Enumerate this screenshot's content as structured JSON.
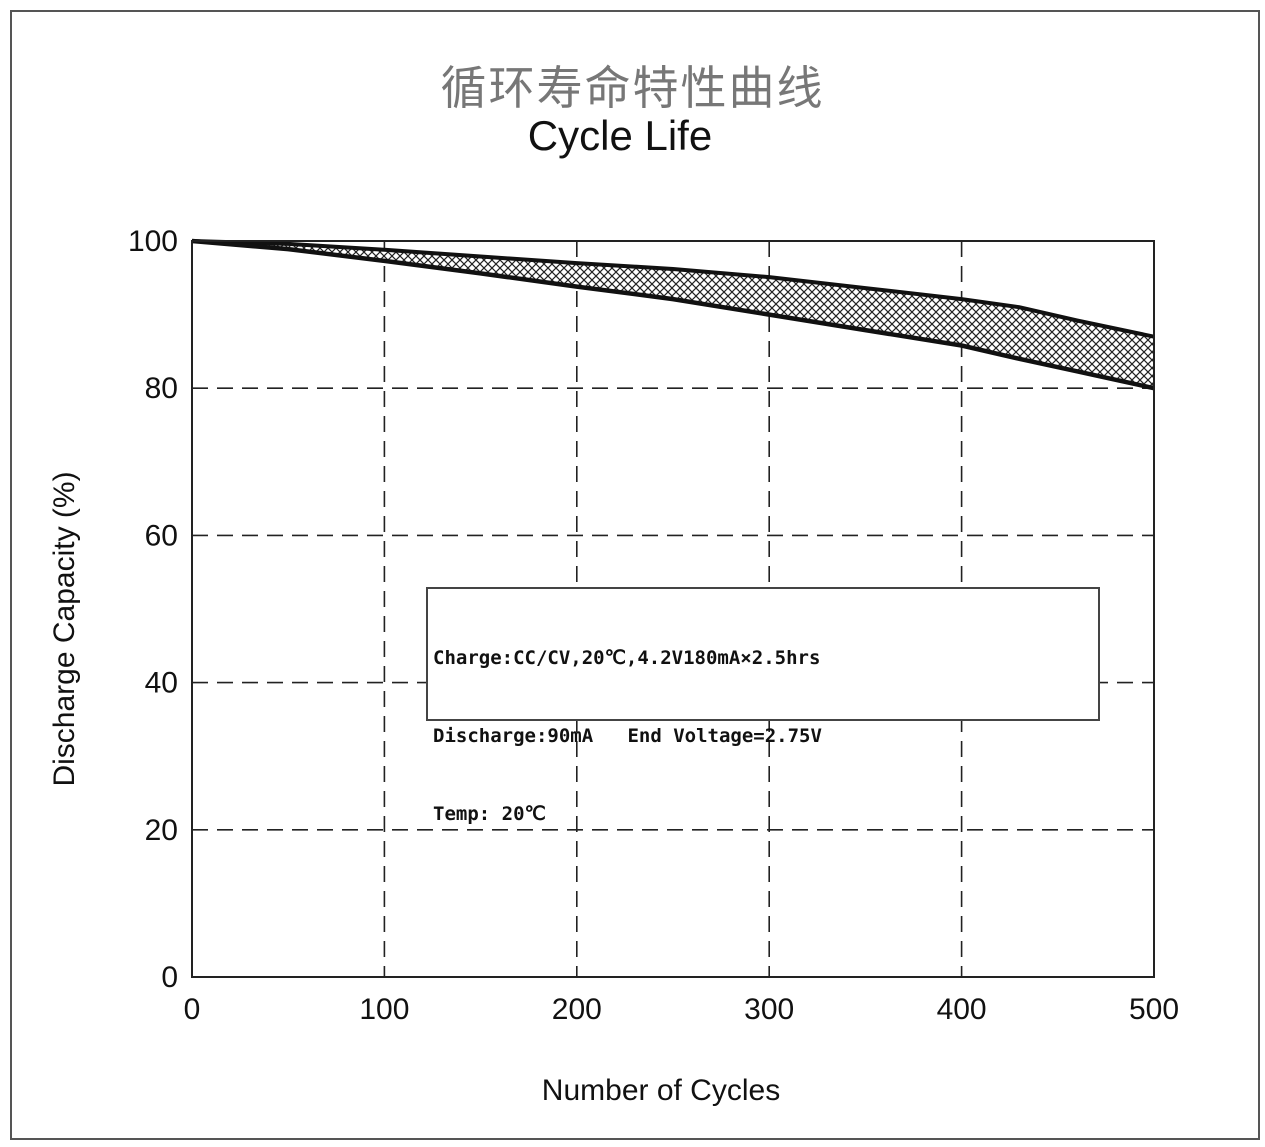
{
  "title_cn": "循环寿命特性曲线",
  "title_en": "Cycle Life",
  "chart_data": {
    "type": "area",
    "title": "Cycle Life",
    "xlabel": "Number of Cycles",
    "ylabel": "Discharge Capacity (%)",
    "xlim": [
      0,
      500
    ],
    "ylim": [
      0,
      100
    ],
    "xticks": [
      0,
      100,
      200,
      300,
      400,
      500
    ],
    "yticks": [
      0,
      20,
      40,
      60,
      80,
      100
    ],
    "grid": "dashed",
    "fill": "crosshatch band between upper and lower curves",
    "x": [
      0,
      50,
      100,
      150,
      200,
      250,
      300,
      350,
      400,
      430,
      460,
      500
    ],
    "series": [
      {
        "values": [
          100,
          99.6,
          98.8,
          97.9,
          97.0,
          96.2,
          95.1,
          93.6,
          92.1,
          91.0,
          89.2,
          87.0
        ]
      },
      {
        "values": [
          100,
          98.9,
          97.3,
          95.6,
          93.8,
          92.1,
          90.0,
          87.9,
          85.8,
          84.0,
          82.3,
          80.0
        ]
      }
    ]
  },
  "note": {
    "lines": [
      "Charge:CC/CV,20℃,4.2V180mA×2.5hrs",
      "Discharge:90mA   End Voltage=2.75V",
      "Temp: 20℃"
    ]
  }
}
